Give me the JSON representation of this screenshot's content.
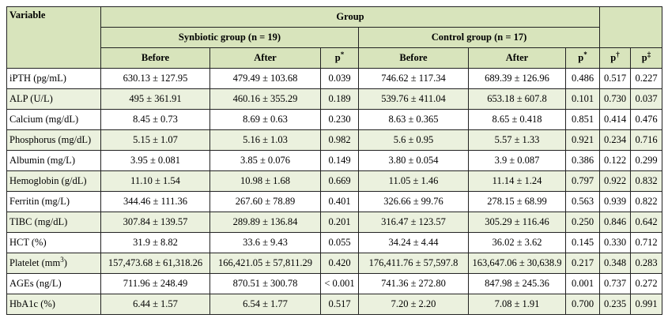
{
  "table": {
    "header": {
      "variable": "Variable",
      "group": "Group",
      "synbiotic": "Synbiotic group (n = 19)",
      "control": "Control group (n = 17)",
      "columns": [
        "Before",
        "After",
        {
          "text": "p",
          "sup": "*"
        },
        "Before",
        "After",
        {
          "text": "p",
          "sup": "*"
        },
        {
          "text": "p",
          "sup": "†"
        },
        {
          "text": "p",
          "sup": "‡"
        }
      ]
    },
    "rows": [
      {
        "variable": "iPTH (pg/mL)",
        "cells": [
          "630.13 ± 127.95",
          "479.49 ± 103.68",
          "0.039",
          "746.62 ± 117.34",
          "689.39 ± 126.96",
          "0.486",
          "0.517",
          "0.227"
        ]
      },
      {
        "variable": "ALP (U/L)",
        "cells": [
          "495 ± 361.91",
          "460.16 ± 355.29",
          "0.189",
          "539.76 ± 411.04",
          "653.18 ± 607.8",
          "0.101",
          "0.730",
          "0.037"
        ]
      },
      {
        "variable": "Calcium (mg/dL)",
        "cells": [
          "8.45 ± 0.73",
          "8.69 ± 0.63",
          "0.230",
          "8.63 ± 0.365",
          "8.65 ± 0.418",
          "0.851",
          "0.414",
          "0.476"
        ]
      },
      {
        "variable": "Phosphorus (mg/dL)",
        "cells": [
          "5.15 ± 1.07",
          "5.16 ± 1.03",
          "0.982",
          "5.6 ± 0.95",
          "5.57 ± 1.33",
          "0.921",
          "0.234",
          "0.716"
        ]
      },
      {
        "variable": "Albumin (mg/L)",
        "cells": [
          "3.95 ± 0.081",
          "3.85 ± 0.076",
          "0.149",
          "3.80 ± 0.054",
          "3.9 ± 0.087",
          "0.386",
          "0.122",
          "0.299"
        ]
      },
      {
        "variable": "Hemoglobin (g/dL)",
        "cells": [
          "11.10 ± 1.54",
          "10.98 ± 1.68",
          "0.669",
          "11.05 ± 1.46",
          "11.14 ± 1.24",
          "0.797",
          "0.922",
          "0.832"
        ]
      },
      {
        "variable": "Ferritin (mg/L)",
        "cells": [
          "344.46 ± 111.36",
          "267.60 ± 78.89",
          "0.401",
          "326.66 ± 99.76",
          "278.15 ± 68.99",
          "0.563",
          "0.939",
          "0.822"
        ]
      },
      {
        "variable": "TIBC (mg/dL)",
        "cells": [
          "307.84 ± 139.57",
          "289.89 ± 136.84",
          "0.201",
          "316.47 ± 123.57",
          "305.29 ± 116.46",
          "0.250",
          "0.846",
          "0.642"
        ]
      },
      {
        "variable": "HCT (%)",
        "cells": [
          "31.9 ± 8.82",
          "33.6 ± 9.43",
          "0.055",
          "34.24 ± 4.44",
          "36.02 ± 3.62",
          "0.145",
          "0.330",
          "0.712"
        ]
      },
      {
        "variable": {
          "text": "Platelet (mm",
          "sup": "3",
          "after": ")"
        },
        "cells": [
          "157,473.68 ± 61,318.26",
          "166,421.05 ± 57,811.29",
          "0.420",
          "176,411.76 ± 57,597.8",
          "163,647.06 ± 30,638.9",
          "0.217",
          "0.348",
          "0.283"
        ]
      },
      {
        "variable": "AGEs (ng/L)",
        "cells": [
          "711.96 ± 248.49",
          "870.51 ± 300.78",
          "< 0.001",
          "741.36 ± 272.80",
          "847.98 ± 245.36",
          "0.001",
          "0.737",
          "0.272"
        ]
      },
      {
        "variable": "HbA1c (%)",
        "cells": [
          "6.44 ± 1.57",
          "6.54 ± 1.77",
          "0.517",
          "7.20 ± 2.20",
          "7.08 ± 1.91",
          "0.700",
          "0.235",
          "0.991"
        ]
      }
    ]
  }
}
